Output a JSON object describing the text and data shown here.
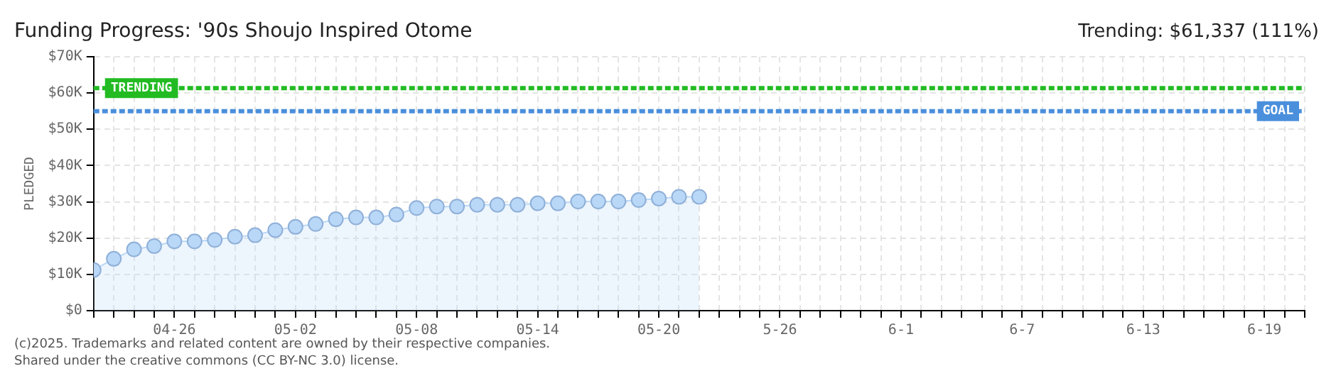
{
  "chart_data": {
    "type": "area",
    "title": "Funding Progress: '90s Shoujo Inspired Otome",
    "ylabel": "PLEDGED",
    "annotations": [
      "Trending: $61,337 (111%)",
      "(c)2025. Trademarks and related content are owned by their respective companies.",
      "Shared under the creative commons (CC BY-NC 3.0) license."
    ],
    "x": [
      "--04-22",
      "--04-23",
      "--04-24",
      "--04-25",
      "--04-26",
      "--04-27",
      "--04-28",
      "--04-29",
      "--04-30",
      "--05-01",
      "--05-02",
      "--05-03",
      "--05-04",
      "--05-05",
      "--05-06",
      "--05-07",
      "--05-08",
      "--05-09",
      "--05-10",
      "--05-11",
      "--05-12",
      "--05-13",
      "--05-14",
      "--05-15",
      "--05-16",
      "--05-17",
      "--05-18",
      "--05-19",
      "--05-20",
      "--05-21",
      "--05-22"
    ],
    "series": [
      {
        "color": "#b9d7f7",
        "values": [
          11200,
          14300,
          16900,
          17800,
          19100,
          19100,
          19500,
          20400,
          20800,
          22200,
          23100,
          23900,
          25200,
          25700,
          25700,
          26500,
          28300,
          28700,
          28700,
          29200,
          29200,
          29200,
          29600,
          29600,
          30100,
          30100,
          30100,
          30500,
          30900,
          31400,
          31400
        ]
      }
    ],
    "marker": "circle",
    "xlim": [
      "--04-22",
      "--06-21"
    ],
    "xticks": [
      {
        "value": "--04-22",
        "label": null
      },
      {
        "value": "--04-23",
        "label": null
      },
      {
        "value": "--04-24",
        "label": null
      },
      {
        "value": "--04-25",
        "label": null
      },
      {
        "value": "--04-26",
        "label": "04-26"
      },
      {
        "value": "--04-27",
        "label": null
      },
      {
        "value": "--04-28",
        "label": null
      },
      {
        "value": "--04-29",
        "label": null
      },
      {
        "value": "--04-30",
        "label": null
      },
      {
        "value": "--05-01",
        "label": null
      },
      {
        "value": "--05-02",
        "label": "05-02"
      },
      {
        "value": "--05-03",
        "label": null
      },
      {
        "value": "--05-04",
        "label": null
      },
      {
        "value": "--05-05",
        "label": null
      },
      {
        "value": "--05-06",
        "label": null
      },
      {
        "value": "--05-07",
        "label": null
      },
      {
        "value": "--05-08",
        "label": "05-08"
      },
      {
        "value": "--05-09",
        "label": null
      },
      {
        "value": "--05-10",
        "label": null
      },
      {
        "value": "--05-11",
        "label": null
      },
      {
        "value": "--05-12",
        "label": null
      },
      {
        "value": "--05-13",
        "label": null
      },
      {
        "value": "--05-14",
        "label": "05-14"
      },
      {
        "value": "--05-15",
        "label": null
      },
      {
        "value": "--05-16",
        "label": null
      },
      {
        "value": "--05-17",
        "label": null
      },
      {
        "value": "--05-18",
        "label": null
      },
      {
        "value": "--05-19",
        "label": null
      },
      {
        "value": "--05-20",
        "label": "05-20"
      },
      {
        "value": "--05-21",
        "label": null
      },
      {
        "value": "--05-22",
        "label": null
      },
      {
        "value": "--05-23",
        "label": null
      },
      {
        "value": "--05-24",
        "label": null
      },
      {
        "value": "--05-25",
        "label": null
      },
      {
        "value": "--05-26",
        "label": "5-26"
      },
      {
        "value": "--05-27",
        "label": null
      },
      {
        "value": "--05-28",
        "label": null
      },
      {
        "value": "--05-29",
        "label": null
      },
      {
        "value": "--05-30",
        "label": null
      },
      {
        "value": "--05-31",
        "label": null
      },
      {
        "value": "--06-01",
        "label": "6-1"
      },
      {
        "value": "--06-02",
        "label": null
      },
      {
        "value": "--06-03",
        "label": null
      },
      {
        "value": "--06-04",
        "label": null
      },
      {
        "value": "--06-05",
        "label": null
      },
      {
        "value": "--06-06",
        "label": null
      },
      {
        "value": "--06-07",
        "label": "6-7"
      },
      {
        "value": "--06-08",
        "label": null
      },
      {
        "value": "--06-09",
        "label": null
      },
      {
        "value": "--06-10",
        "label": null
      },
      {
        "value": "--06-11",
        "label": null
      },
      {
        "value": "--06-12",
        "label": null
      },
      {
        "value": "--06-13",
        "label": "6-13"
      },
      {
        "value": "--06-14",
        "label": null
      },
      {
        "value": "--06-15",
        "label": null
      },
      {
        "value": "--06-16",
        "label": null
      },
      {
        "value": "--06-17",
        "label": null
      },
      {
        "value": "--06-18",
        "label": null
      },
      {
        "value": "--06-19",
        "label": "6-19"
      },
      {
        "value": "--06-20",
        "label": null
      },
      {
        "value": "--06-21",
        "label": null
      }
    ],
    "ylim": [
      0,
      70000
    ],
    "yticks": [
      {
        "value": 0,
        "label": "$0"
      },
      {
        "value": 10000,
        "label": "$10K"
      },
      {
        "value": 20000,
        "label": "$20K"
      },
      {
        "value": 30000,
        "label": "$30K"
      },
      {
        "value": 40000,
        "label": "$40K"
      },
      {
        "value": 50000,
        "label": "$50K"
      },
      {
        "value": 60000,
        "label": "$60K"
      },
      {
        "value": 70000,
        "label": "$70K"
      }
    ],
    "ref_lines": [
      {
        "axis": "y",
        "value": 61337,
        "label": "TRENDING",
        "color": "#22bb22",
        "line_style": "dashed"
      },
      {
        "axis": "y",
        "value": 55000,
        "label": "GOAL",
        "color": "#4a8fdc",
        "line_style": "dashed"
      }
    ],
    "grid": true
  }
}
